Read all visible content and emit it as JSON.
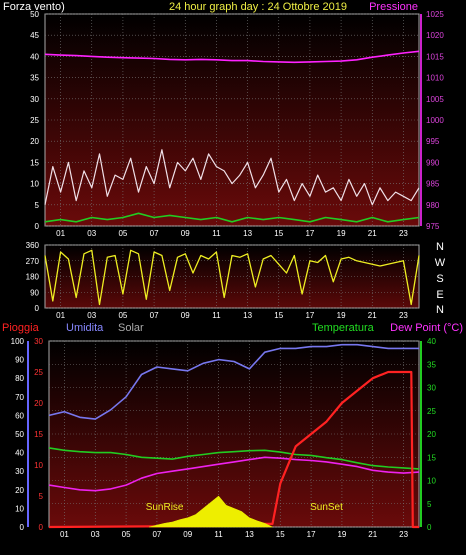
{
  "chart_data": [
    {
      "type": "line",
      "title": "24 hour graph day : 24 Ottobre 2019",
      "left_axis_label": "Forza vento)",
      "right_axis_label": "Pressione",
      "x_ticks": [
        "01",
        "03",
        "05",
        "07",
        "09",
        "11",
        "13",
        "15",
        "17",
        "19",
        "21",
        "23"
      ],
      "xlim": [
        0,
        24
      ],
      "ylim_left": [
        0,
        50
      ],
      "y_ticks_left": [
        0,
        5,
        10,
        15,
        20,
        25,
        30,
        35,
        40,
        45,
        50
      ],
      "ylim_right": [
        975,
        1025
      ],
      "y_ticks_right": [
        975,
        980,
        985,
        990,
        995,
        1000,
        1005,
        1010,
        1015,
        1020,
        1025
      ],
      "grid": true,
      "series": [
        {
          "key": "wind_gust",
          "color": "#f0e0e8",
          "x": [
            0,
            0.5,
            1,
            1.5,
            2,
            2.5,
            3,
            3.5,
            4,
            4.5,
            5,
            5.5,
            6,
            6.5,
            7,
            7.5,
            8,
            8.5,
            9,
            9.5,
            10,
            10.5,
            11,
            11.5,
            12,
            12.5,
            13,
            13.5,
            14,
            14.5,
            15,
            15.5,
            16,
            16.5,
            17,
            17.5,
            18,
            18.5,
            19,
            19.5,
            20,
            20.5,
            21,
            21.5,
            22,
            22.5,
            23,
            23.5,
            24
          ],
          "y": [
            5,
            14,
            8,
            15,
            6,
            13,
            9,
            17,
            7,
            12,
            11,
            16,
            8,
            14,
            10,
            18,
            9,
            15,
            13,
            16,
            11,
            17,
            14,
            13,
            10,
            12,
            15,
            9,
            12,
            16,
            8,
            11,
            6,
            10,
            7,
            12,
            8,
            9,
            6,
            11,
            7,
            10,
            5,
            9,
            6,
            8,
            7,
            6,
            9
          ]
        },
        {
          "key": "wind_avg",
          "color": "#22cc22",
          "x": [
            0,
            1,
            2,
            3,
            4,
            5,
            6,
            7,
            8,
            9,
            10,
            11,
            12,
            13,
            14,
            15,
            16,
            17,
            18,
            19,
            20,
            21,
            22,
            23,
            24
          ],
          "y": [
            1,
            1.5,
            1,
            2,
            1.5,
            2,
            3,
            2,
            2.5,
            2,
            1.5,
            2,
            1,
            2,
            1.5,
            2,
            1.5,
            1,
            2,
            1.5,
            1,
            2,
            1,
            1.5,
            2
          ]
        },
        {
          "key": "pressure",
          "color": "#ff22ff",
          "axis": "right",
          "x": [
            0,
            1,
            2,
            3,
            4,
            5,
            6,
            7,
            8,
            9,
            10,
            11,
            12,
            13,
            14,
            15,
            16,
            17,
            18,
            19,
            20,
            21,
            22,
            23,
            24
          ],
          "y": [
            1015.5,
            1015.3,
            1015.2,
            1015.0,
            1014.8,
            1014.7,
            1014.6,
            1014.5,
            1014.3,
            1014.2,
            1014.3,
            1014.2,
            1014.0,
            1014.0,
            1013.8,
            1013.7,
            1013.6,
            1013.7,
            1013.8,
            1013.9,
            1014.2,
            1014.8,
            1015.3,
            1015.8,
            1016.2
          ]
        }
      ]
    },
    {
      "type": "line",
      "title": "",
      "x_ticks": [
        "01",
        "03",
        "05",
        "07",
        "09",
        "11",
        "13",
        "15",
        "17",
        "19",
        "21",
        "23"
      ],
      "xlim": [
        0,
        24
      ],
      "ylim": [
        0,
        360
      ],
      "y_ticks": [
        0,
        90,
        180,
        270,
        360
      ],
      "direction_labels": [
        "N",
        "W",
        "S",
        "E",
        "N"
      ],
      "series": [
        {
          "key": "wind_dir",
          "color": "#eeee22",
          "x": [
            0,
            0.5,
            1,
            1.5,
            2,
            2.5,
            3,
            3.5,
            4,
            4.5,
            5,
            5.5,
            6,
            6.5,
            7,
            7.5,
            8,
            8.5,
            9,
            9.5,
            10,
            10.5,
            11,
            11.5,
            12,
            12.5,
            13,
            13.5,
            14,
            14.5,
            15,
            15.5,
            16,
            16.5,
            17,
            17.5,
            18,
            18.5,
            19,
            19.5,
            20,
            20.5,
            21,
            21.5,
            22,
            22.5,
            23,
            23.5,
            24
          ],
          "y": [
            300,
            40,
            320,
            280,
            60,
            310,
            330,
            20,
            290,
            300,
            80,
            330,
            310,
            50,
            320,
            300,
            100,
            290,
            310,
            200,
            300,
            280,
            320,
            60,
            300,
            290,
            310,
            120,
            280,
            300,
            250,
            200,
            300,
            80,
            270,
            260,
            300,
            150,
            280,
            290,
            270,
            260,
            250,
            240,
            250,
            260,
            270,
            20,
            300
          ]
        }
      ]
    },
    {
      "type": "line",
      "legend": [
        "Pioggia",
        "Umidita",
        "Solar",
        "Temperatura",
        "Dew Point (°C)"
      ],
      "x_ticks": [
        "01",
        "03",
        "05",
        "07",
        "09",
        "11",
        "13",
        "15",
        "17",
        "19",
        "21",
        "23"
      ],
      "xlim": [
        0,
        24
      ],
      "ylim_humidity": [
        0,
        100
      ],
      "y_ticks_humidity": [
        0,
        10,
        20,
        30,
        40,
        50,
        60,
        70,
        80,
        90,
        100
      ],
      "ylim_rain": [
        0,
        30
      ],
      "y_ticks_rain": [
        0,
        5,
        10,
        15,
        20,
        25,
        30
      ],
      "ylim_temp": [
        0,
        40
      ],
      "y_ticks_temp": [
        0,
        5,
        10,
        15,
        20,
        25,
        30,
        35,
        40
      ],
      "annotations": [
        "SunRise",
        "SunSet"
      ],
      "annotation_x": [
        7.5,
        18
      ],
      "series": [
        {
          "key": "humidity",
          "color": "#7777ee",
          "axis": "humidity",
          "x": [
            0,
            1,
            2,
            3,
            4,
            5,
            6,
            7,
            8,
            9,
            10,
            11,
            12,
            13,
            14,
            15,
            16,
            17,
            18,
            19,
            20,
            21,
            22,
            23,
            24
          ],
          "y": [
            60,
            62,
            59,
            58,
            63,
            70,
            82,
            86,
            85,
            84,
            88,
            90,
            89,
            85,
            94,
            96,
            96,
            97,
            97,
            98,
            98,
            97,
            96,
            96,
            96
          ]
        },
        {
          "key": "temperature",
          "color": "#22cc22",
          "axis": "temp",
          "x": [
            0,
            1,
            2,
            3,
            4,
            5,
            6,
            7,
            8,
            9,
            10,
            11,
            12,
            13,
            14,
            15,
            16,
            17,
            18,
            19,
            20,
            21,
            22,
            23,
            24
          ],
          "y": [
            17,
            16.5,
            16.2,
            16,
            16,
            15.6,
            15,
            14.8,
            14.6,
            15.2,
            15.6,
            16,
            16.2,
            16.4,
            16.5,
            16.1,
            15.6,
            15.4,
            14.9,
            14.5,
            13.8,
            13.2,
            12.9,
            12.7,
            12.5
          ]
        },
        {
          "key": "dew_point",
          "color": "#ee22ee",
          "axis": "temp",
          "x": [
            0,
            1,
            2,
            3,
            4,
            5,
            6,
            7,
            8,
            9,
            10,
            11,
            12,
            13,
            14,
            15,
            16,
            17,
            18,
            19,
            20,
            21,
            22,
            23,
            24
          ],
          "y": [
            9,
            8.5,
            8,
            7.8,
            8.2,
            9,
            10.5,
            11.5,
            12,
            12.5,
            13,
            13.5,
            14,
            14.5,
            15,
            14.8,
            14.5,
            14.3,
            14,
            13.5,
            13,
            12.2,
            11.8,
            11.6,
            11.8
          ]
        },
        {
          "key": "rain",
          "color": "#ff2222",
          "axis": "rain",
          "x": [
            0,
            13,
            14,
            14.5,
            15,
            16,
            17,
            18,
            19,
            20,
            21,
            22,
            23,
            23.5,
            23.6,
            24
          ],
          "y": [
            0,
            0.2,
            0.5,
            0.5,
            7,
            13,
            15,
            17,
            20,
            22,
            24,
            25,
            25,
            25,
            0,
            0
          ]
        },
        {
          "key": "solar",
          "color": "#eeee00",
          "axis": "rain",
          "x": [
            6.5,
            7,
            7.5,
            8,
            8.5,
            9,
            9.5,
            10,
            10.5,
            11,
            11.5,
            12,
            12.5,
            13,
            13.5,
            14,
            14.5
          ],
          "y": [
            0,
            0.3,
            0.6,
            0.8,
            1.2,
            1.5,
            2,
            3,
            4,
            5,
            3.5,
            3,
            2.5,
            1.5,
            1,
            0.6,
            0
          ]
        }
      ]
    }
  ]
}
